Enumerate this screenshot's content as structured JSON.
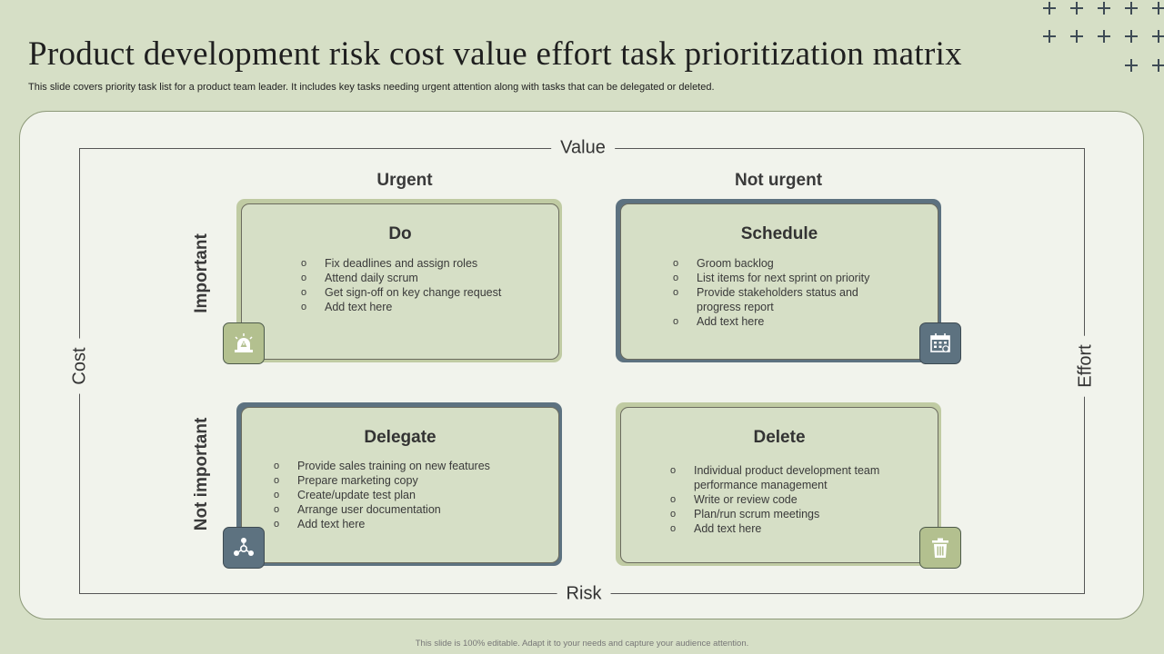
{
  "title": "Product development risk cost value effort task prioritization matrix",
  "subtitle": "This slide covers priority task list for a product team leader. It includes key tasks needing urgent attention along with tasks that can be delegated or deleted.",
  "axes": {
    "top": "Value",
    "bottom": "Risk",
    "left": "Cost",
    "right": "Effort"
  },
  "columns": {
    "urgent": "Urgent",
    "not_urgent": "Not urgent"
  },
  "rows": {
    "important": "Important",
    "not_important": "Not important"
  },
  "quadrants": {
    "do": {
      "title": "Do",
      "items": [
        "Fix deadlines and assign roles",
        "Attend daily scrum",
        "Get sign-off on key change request",
        "Add text here"
      ],
      "icon": "alarm-warning-icon"
    },
    "schedule": {
      "title": "Schedule",
      "items": [
        "Groom backlog",
        "List items for next sprint on priority",
        "Provide  stakeholders status and progress report",
        "Add text here"
      ],
      "icon": "calendar-icon"
    },
    "delegate": {
      "title": "Delegate",
      "items": [
        "Provide  sales training on new features",
        "Prepare  marketing copy",
        "Create/update  test plan",
        "Arrange  user documentation",
        "Add text here"
      ],
      "icon": "team-network-icon"
    },
    "delete": {
      "title": "Delete",
      "items": [
        "Individual  product development  team performance  management",
        "Write or review  code",
        "Plan/run  scrum meetings",
        "Add text here"
      ],
      "icon": "trash-icon"
    }
  },
  "colors": {
    "background": "#d6dfc6",
    "panel": "#f1f3ec",
    "green_border": "#c0cba3",
    "slate_border": "#5d7280"
  },
  "footer": "This slide is 100% editable.  Adapt it to your  needs and capture your audience attention."
}
